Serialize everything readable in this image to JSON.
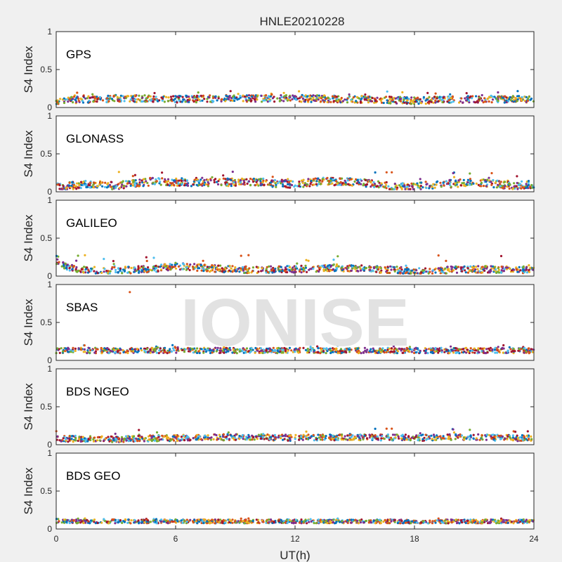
{
  "chart_data": {
    "type": "scatter",
    "title": "HNLE20210228",
    "xlabel": "UT(h)",
    "ylabel": "S4 Index",
    "xlim": [
      0,
      24
    ],
    "ylim": [
      0,
      1
    ],
    "xticks": [
      "0",
      "6",
      "12",
      "18",
      "24"
    ],
    "yticks": [
      "0",
      "0.5",
      "1"
    ],
    "grid": false,
    "watermark": "IONISE",
    "series_colors": [
      "#0072BD",
      "#D95319",
      "#EDB120",
      "#7E2F8E",
      "#77AC30",
      "#4DBEEE",
      "#A2142F"
    ],
    "panels": [
      {
        "name": "GPS",
        "baseline_profile": [
          [
            0,
            0.09
          ],
          [
            3,
            0.12
          ],
          [
            6,
            0.11
          ],
          [
            9,
            0.12
          ],
          [
            12,
            0.12
          ],
          [
            15,
            0.11
          ],
          [
            18,
            0.09
          ],
          [
            21,
            0.11
          ],
          [
            24,
            0.11
          ]
        ],
        "spread": 0.045,
        "peak_max": 0.22
      },
      {
        "name": "GLONASS",
        "baseline_profile": [
          [
            0,
            0.06
          ],
          [
            1.5,
            0.1
          ],
          [
            3,
            0.08
          ],
          [
            5,
            0.14
          ],
          [
            7,
            0.12
          ],
          [
            9.5,
            0.13
          ],
          [
            12,
            0.1
          ],
          [
            13.5,
            0.14
          ],
          [
            15.5,
            0.12
          ],
          [
            17,
            0.06
          ],
          [
            19,
            0.09
          ],
          [
            21,
            0.13
          ],
          [
            23,
            0.08
          ],
          [
            24,
            0.1
          ]
        ],
        "spread": 0.05,
        "peak_max": 0.27
      },
      {
        "name": "GALILEO",
        "baseline_profile": [
          [
            0,
            0.2
          ],
          [
            0.5,
            0.12
          ],
          [
            1.5,
            0.08
          ],
          [
            3,
            0.07
          ],
          [
            5,
            0.1
          ],
          [
            6,
            0.13
          ],
          [
            8,
            0.1
          ],
          [
            10,
            0.08
          ],
          [
            12,
            0.09
          ],
          [
            14,
            0.11
          ],
          [
            16,
            0.09
          ],
          [
            18,
            0.07
          ],
          [
            21,
            0.09
          ],
          [
            24,
            0.08
          ]
        ],
        "spread": 0.045,
        "peak_max": 0.28,
        "outliers": []
      },
      {
        "name": "SBAS",
        "baseline_profile": [
          [
            0,
            0.13
          ],
          [
            12,
            0.13
          ],
          [
            24,
            0.13
          ]
        ],
        "spread": 0.035,
        "peak_max": 0.2,
        "outliers": [
          [
            3.7,
            0.9
          ]
        ]
      },
      {
        "name": "BDS NGEO",
        "baseline_profile": [
          [
            0,
            0.08
          ],
          [
            3,
            0.07
          ],
          [
            6,
            0.09
          ],
          [
            9,
            0.1
          ],
          [
            12,
            0.09
          ],
          [
            15,
            0.1
          ],
          [
            18,
            0.09
          ],
          [
            21,
            0.1
          ],
          [
            24,
            0.08
          ]
        ],
        "spread": 0.04,
        "peak_max": 0.22
      },
      {
        "name": "BDS GEO",
        "baseline_profile": [
          [
            0,
            0.1
          ],
          [
            12,
            0.1
          ],
          [
            24,
            0.1
          ]
        ],
        "spread": 0.025,
        "peak_max": 0.14
      }
    ]
  }
}
